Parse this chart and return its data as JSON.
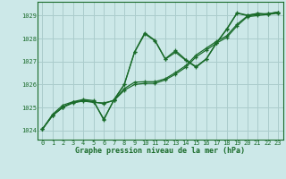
{
  "bg_color": "#cce8e8",
  "grid_color": "#aacccc",
  "line_color": "#1a6b2a",
  "title": "Graphe pression niveau de la mer (hPa)",
  "xlim": [
    -0.5,
    23.5
  ],
  "ylim": [
    1023.6,
    1029.6
  ],
  "yticks": [
    1024,
    1025,
    1026,
    1027,
    1028,
    1029
  ],
  "xticks": [
    0,
    1,
    2,
    3,
    4,
    5,
    6,
    7,
    8,
    9,
    10,
    11,
    12,
    13,
    14,
    15,
    16,
    17,
    18,
    19,
    20,
    21,
    22,
    23
  ],
  "series": [
    [
      1024.05,
      1024.7,
      1025.1,
      1025.25,
      1025.35,
      1025.3,
      1024.45,
      1025.35,
      1026.0,
      1027.4,
      1028.2,
      1027.9,
      1027.1,
      1027.4,
      1027.05,
      1026.75,
      1027.1,
      1027.8,
      1028.4,
      1029.1,
      1029.0,
      1029.1,
      1029.05,
      1029.15
    ],
    [
      1024.05,
      1024.65,
      1025.0,
      1025.2,
      1025.28,
      1025.22,
      1025.2,
      1025.3,
      1025.75,
      1026.0,
      1026.05,
      1026.05,
      1026.2,
      1026.45,
      1026.75,
      1027.2,
      1027.5,
      1027.8,
      1028.05,
      1028.55,
      1028.95,
      1029.0,
      1029.05,
      1029.1
    ],
    [
      1024.05,
      1024.65,
      1025.02,
      1025.22,
      1025.3,
      1025.24,
      1025.16,
      1025.32,
      1025.82,
      1026.1,
      1026.12,
      1026.12,
      1026.25,
      1026.52,
      1026.82,
      1027.28,
      1027.58,
      1027.88,
      1028.12,
      1028.62,
      1028.98,
      1029.05,
      1029.08,
      1029.15
    ],
    [
      1024.05,
      1024.65,
      1025.02,
      1025.22,
      1025.3,
      1025.26,
      1024.5,
      1025.32,
      1026.0,
      1027.42,
      1028.25,
      1027.92,
      1027.12,
      1027.48,
      1027.08,
      1026.78,
      1027.12,
      1027.82,
      1028.42,
      1029.12,
      1029.02,
      1029.08,
      1029.08,
      1029.15
    ]
  ]
}
